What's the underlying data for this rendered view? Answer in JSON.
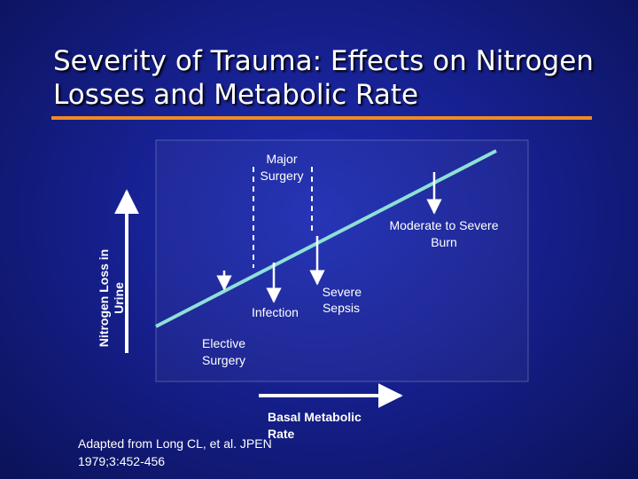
{
  "slide": {
    "title_line1": "Severity of Trauma: Effects on Nitrogen",
    "title_line2": "Losses and Metabolic Rate",
    "accent_color": "#f08a24",
    "background_color": "#1a2aa8"
  },
  "diagram": {
    "y_axis_label_line1": "Nitrogen Loss in",
    "y_axis_label_line2": "Urine",
    "x_axis_label_line1": "Basal Metabolic",
    "x_axis_label_line2": "Rate",
    "trend_line_color": "#8ee0d6",
    "annotations": {
      "major_surgery_line1": "Major",
      "major_surgery_line2": "Surgery",
      "burn_line1": "Moderate to Severe",
      "burn_line2": "Burn",
      "sepsis_line1": "Severe",
      "sepsis_line2": "Sepsis",
      "infection": "Infection",
      "elective_line1": "Elective",
      "elective_line2": "Surgery"
    }
  },
  "citation": {
    "text": "Adapted from Long CL, et al. JPEN 1979;3:452-456"
  }
}
